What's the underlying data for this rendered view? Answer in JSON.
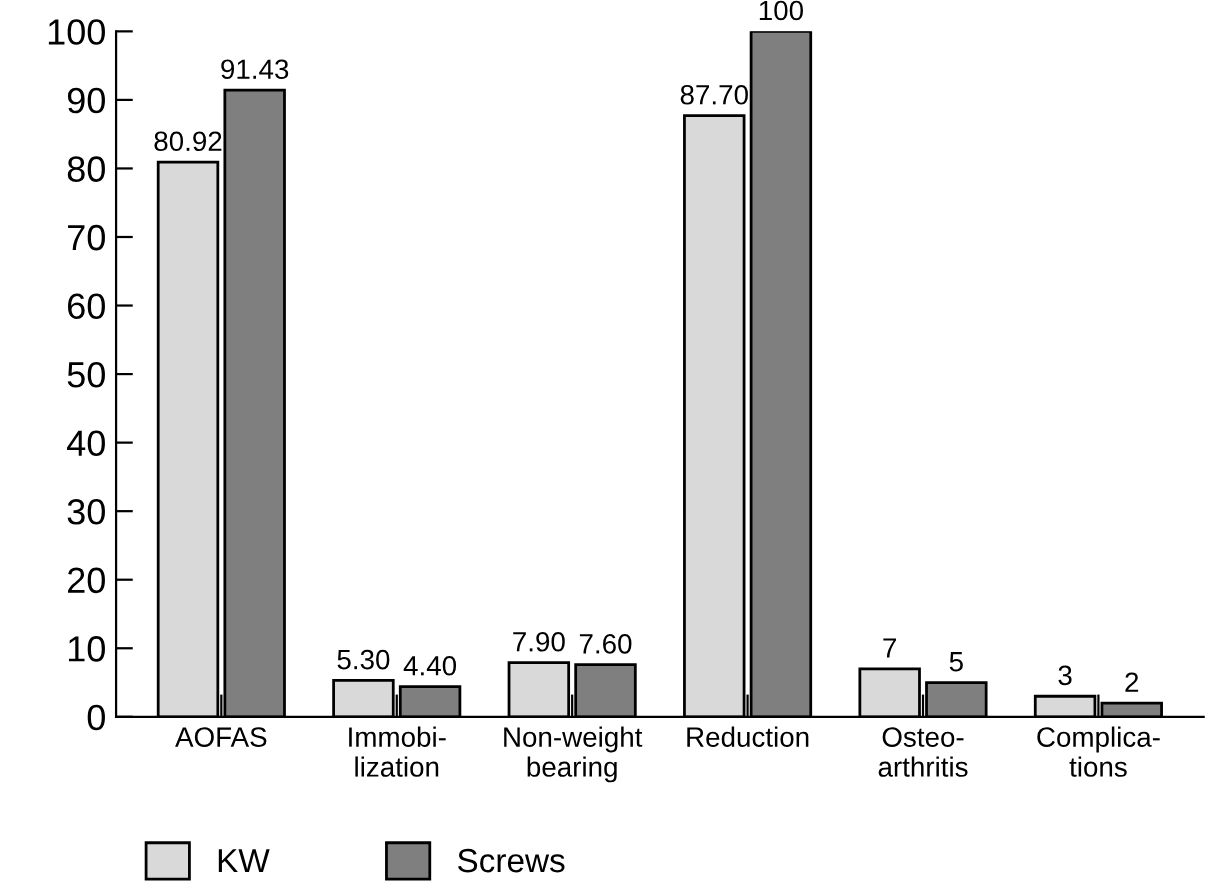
{
  "chart_data": {
    "type": "bar",
    "categories": [
      "AOFAS",
      "Immobi-\nlization",
      "Non-weight\nbearing",
      "Reduction",
      "Osteo-\narthritis",
      "Complica-\ntions"
    ],
    "series": [
      {
        "name": "KW",
        "color": "#d9d9d9",
        "values": [
          80.92,
          5.3,
          7.9,
          87.7,
          7,
          3
        ],
        "value_labels": [
          "80.92",
          "5.30",
          "7.90",
          "87.70",
          "7",
          "3"
        ]
      },
      {
        "name": "Screws",
        "color": "#7f7f7f",
        "values": [
          91.43,
          4.4,
          7.6,
          100,
          5,
          2
        ],
        "value_labels": [
          "91.43",
          "4.40",
          "7.60",
          "100",
          "5",
          "2"
        ]
      }
    ],
    "ylim": [
      0,
      100
    ],
    "yticks": [
      0,
      10,
      20,
      30,
      40,
      50,
      60,
      70,
      80,
      90,
      100
    ],
    "grid": false,
    "legend": "bottom left"
  }
}
